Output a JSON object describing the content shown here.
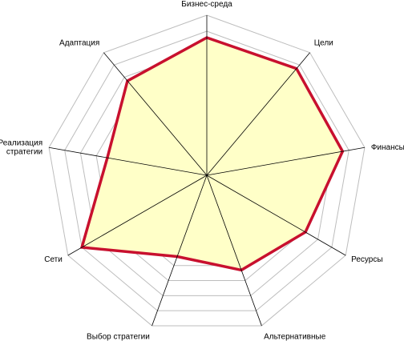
{
  "chart_data": {
    "type": "radar",
    "axes": [
      "Бизнес-среда",
      "Цели",
      "Финансы",
      "Ресурсы",
      "Альтернативные\nварианты стратегии",
      "Выбор стратегии",
      "Сети",
      "Реализация\nстратегии",
      "Адаптация"
    ],
    "series": [
      {
        "values": [
          8.6,
          8.7,
          8.6,
          7.1,
          6.3,
          5.4,
          9.0,
          6.3,
          7.7
        ]
      }
    ],
    "rlim": [
      0,
      10
    ],
    "grid_levels": 10,
    "grid": true,
    "legend": false,
    "colors": {
      "line": "#c8102e",
      "fill": "#ffffc8",
      "grid": "#bdbdbd",
      "axis": "#000000"
    }
  }
}
